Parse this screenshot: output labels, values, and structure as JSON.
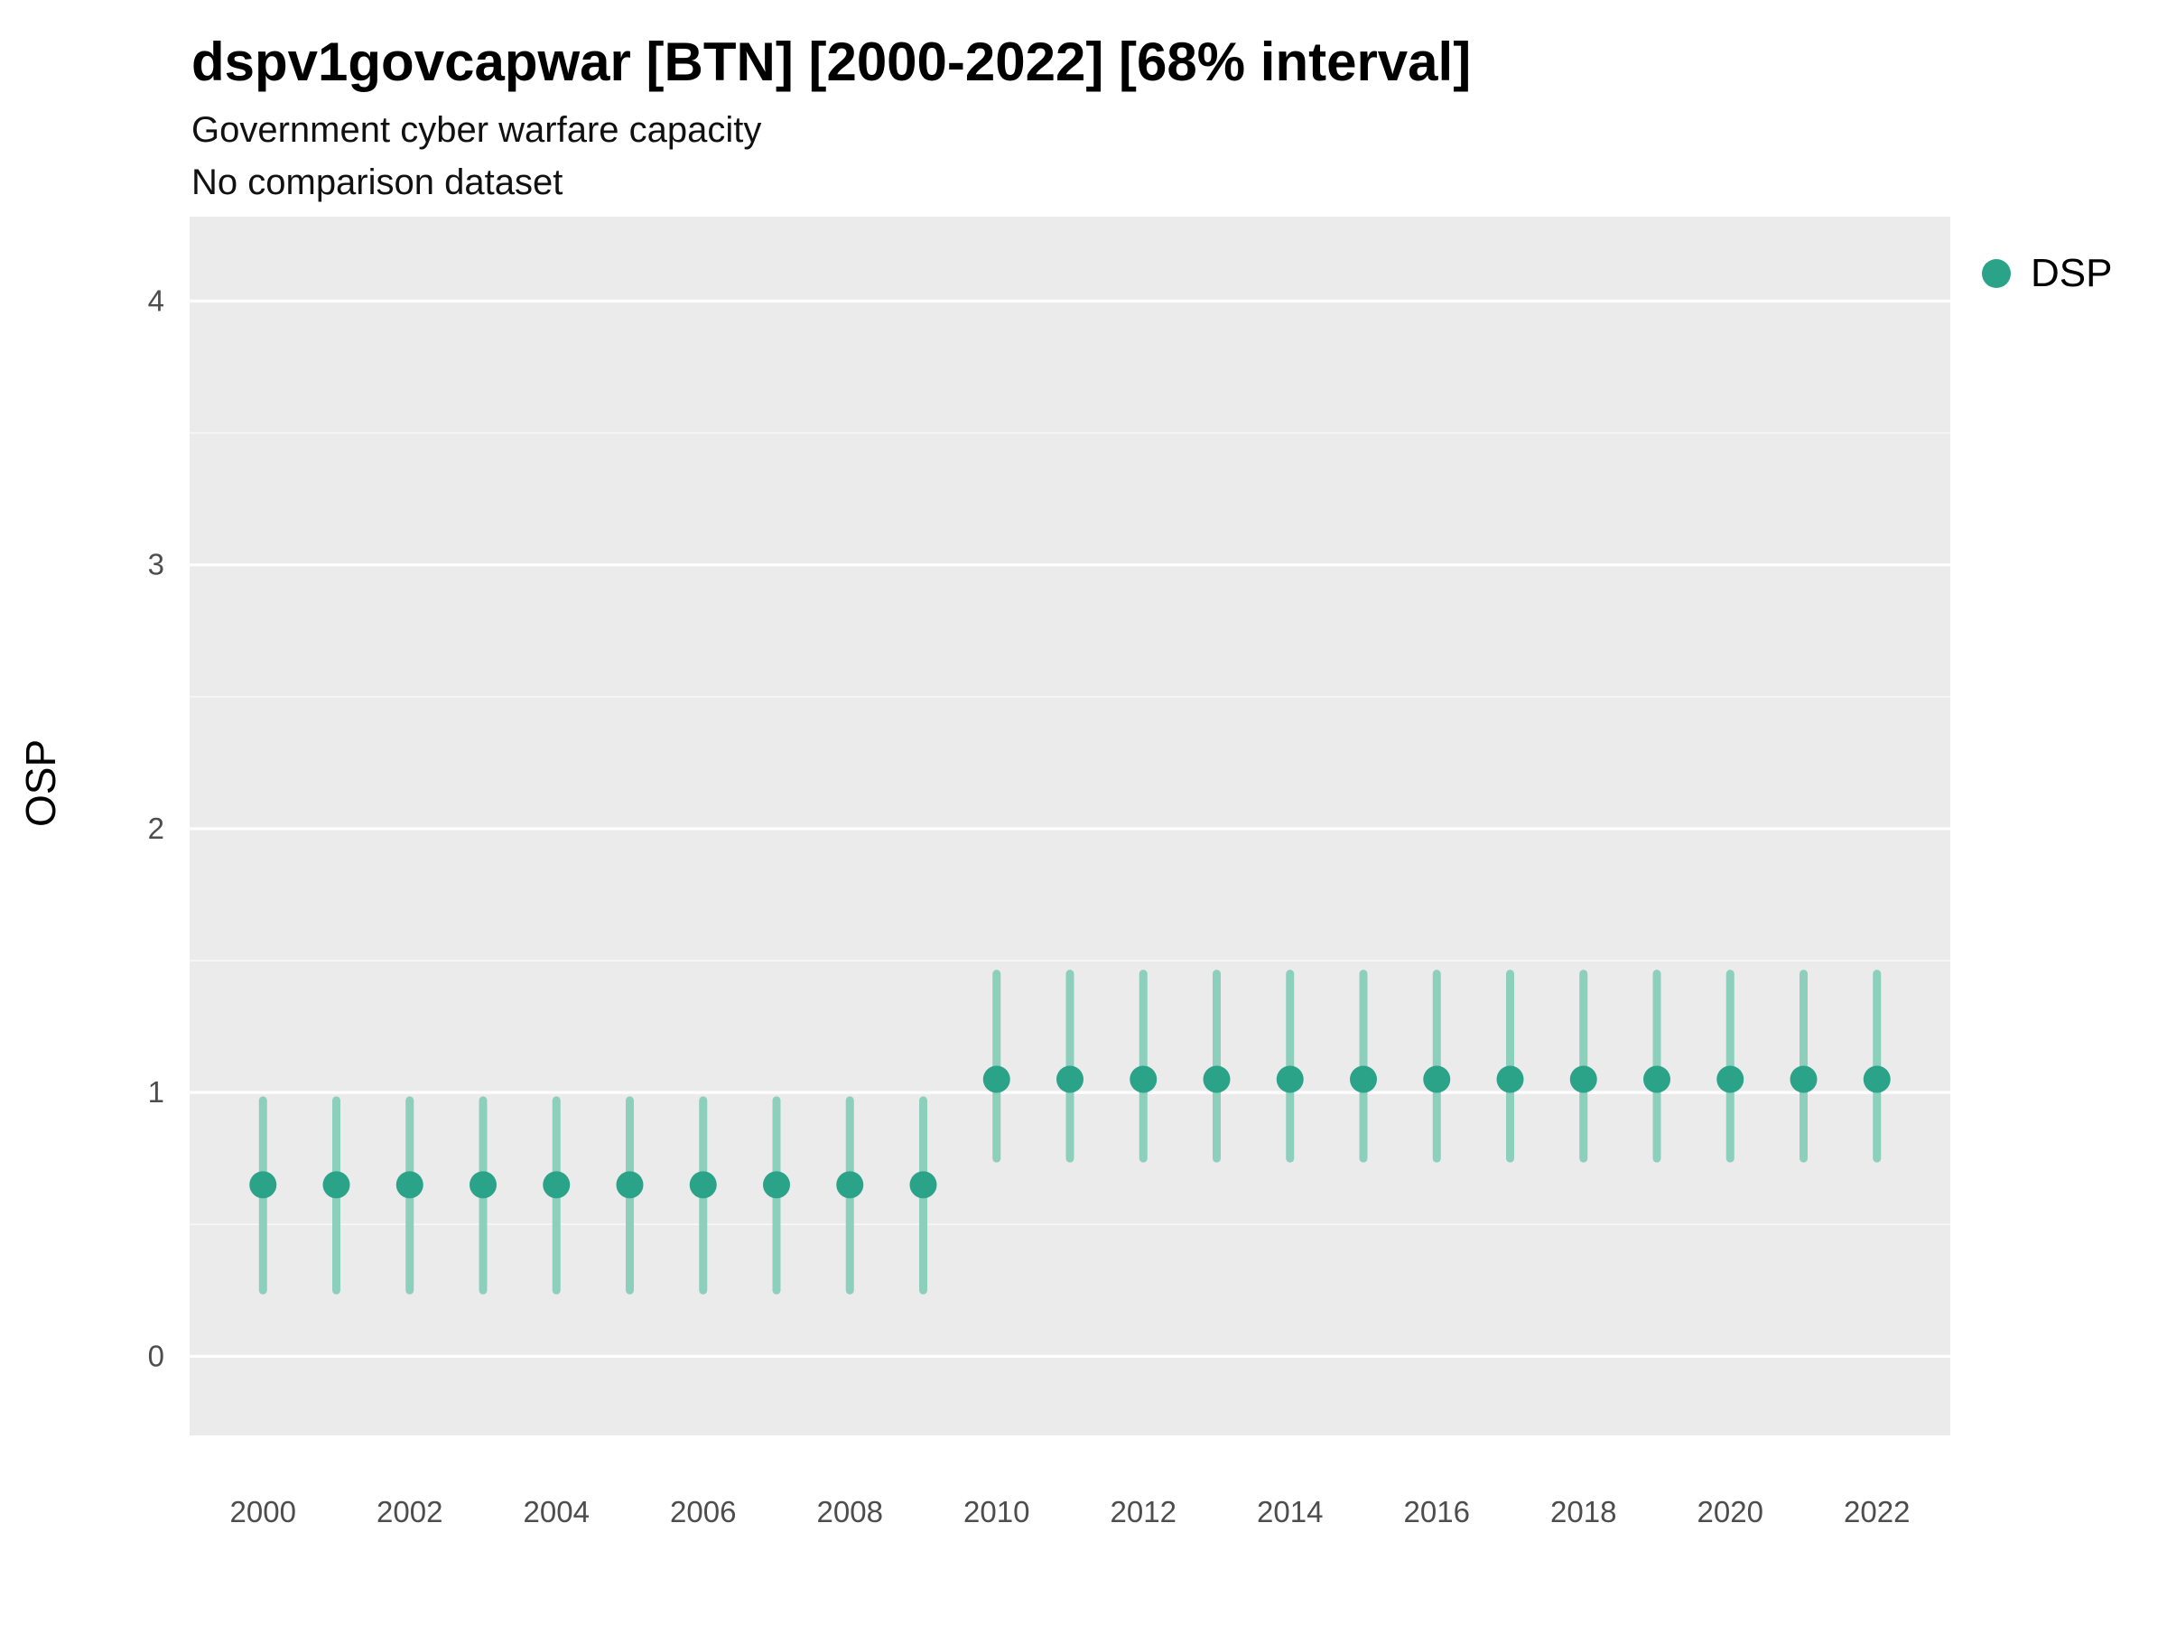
{
  "header": {
    "title": "dspv1govcapwar [BTN] [2000-2022] [68% interval]",
    "subtitle1": "Government cyber warfare capacity",
    "subtitle2": "No comparison dataset"
  },
  "axes": {
    "y_label": "OSP",
    "y_ticks": [
      0,
      1,
      2,
      3,
      4
    ],
    "x_ticks": [
      2000,
      2002,
      2004,
      2006,
      2008,
      2010,
      2012,
      2014,
      2016,
      2018,
      2020,
      2022
    ]
  },
  "legend": {
    "label": "DSP"
  },
  "colors": {
    "point": "#2BA389",
    "interval": "#8CD0BC",
    "panel": "#EBEBEB",
    "grid": "#FFFFFF",
    "tick_text": "#4D4D4D"
  },
  "chart_data": {
    "type": "scatter",
    "title": "dspv1govcapwar [BTN] [2000-2022] [68% interval]",
    "subtitle": "Government cyber warfare capacity",
    "note": "No comparison dataset",
    "xlabel": "",
    "ylabel": "OSP",
    "xlim": [
      1999,
      2023
    ],
    "ylim": [
      -0.3,
      4.32
    ],
    "grid": "horizontal-major",
    "legend_position": "right",
    "x": [
      2000,
      2001,
      2002,
      2003,
      2004,
      2005,
      2006,
      2007,
      2008,
      2009,
      2010,
      2011,
      2012,
      2013,
      2014,
      2015,
      2016,
      2017,
      2018,
      2019,
      2020,
      2021,
      2022
    ],
    "series": [
      {
        "name": "DSP",
        "values": [
          0.65,
          0.65,
          0.65,
          0.65,
          0.65,
          0.65,
          0.65,
          0.65,
          0.65,
          0.65,
          1.05,
          1.05,
          1.05,
          1.05,
          1.05,
          1.05,
          1.05,
          1.05,
          1.05,
          1.05,
          1.05,
          1.05,
          1.05
        ],
        "low": [
          0.25,
          0.25,
          0.25,
          0.25,
          0.25,
          0.25,
          0.25,
          0.25,
          0.25,
          0.25,
          0.75,
          0.75,
          0.75,
          0.75,
          0.75,
          0.75,
          0.75,
          0.75,
          0.75,
          0.75,
          0.75,
          0.75,
          0.75
        ],
        "high": [
          0.97,
          0.97,
          0.97,
          0.97,
          0.97,
          0.97,
          0.97,
          0.97,
          0.97,
          0.97,
          1.45,
          1.45,
          1.45,
          1.45,
          1.45,
          1.45,
          1.45,
          1.45,
          1.45,
          1.45,
          1.45,
          1.45,
          1.45
        ]
      }
    ]
  }
}
